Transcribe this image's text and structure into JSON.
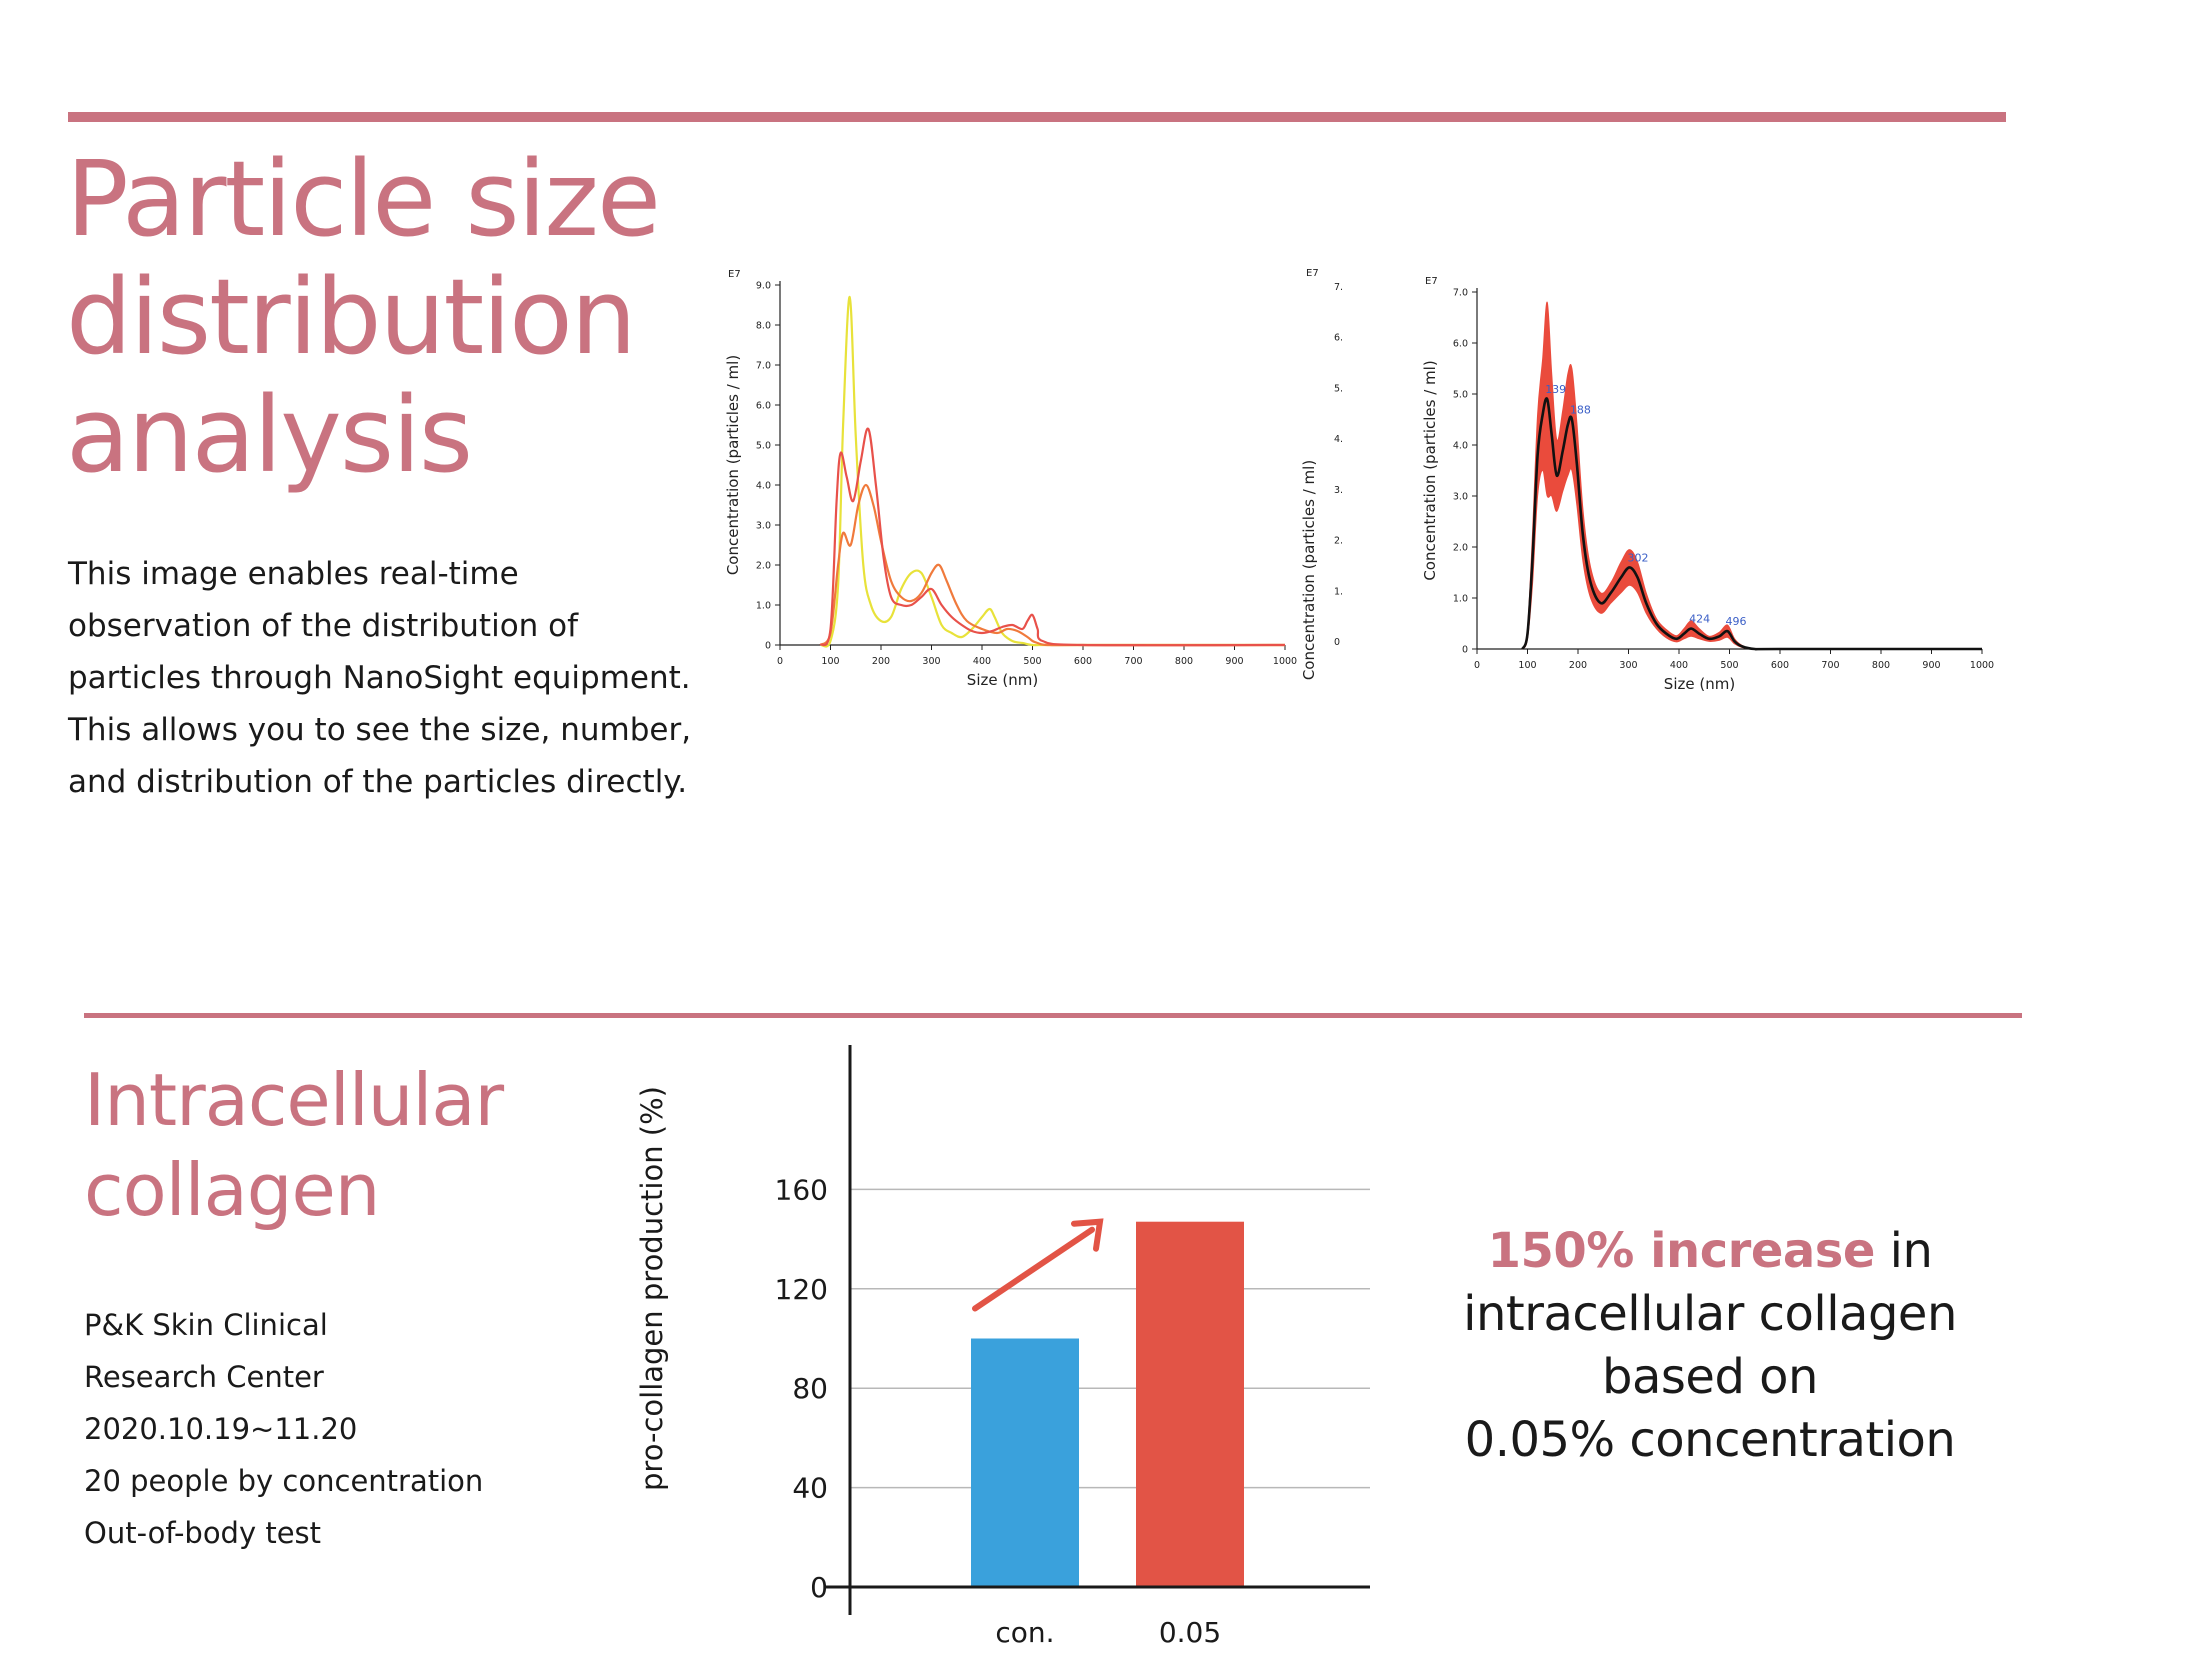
{
  "section1": {
    "title": "Particle size distribution analysis",
    "description": "This image enables real-time observation of the distribution of particles through NanoSight equipment. This allows you to see the size, number, and distribution of the particles directly."
  },
  "section2": {
    "title": "Intracellular collagen",
    "info": [
      "P&K Skin Clinical",
      "Research Center",
      "2020.10.19~11.20",
      "20 people by concentration",
      "Out-of-body test"
    ],
    "callout": {
      "highlight": "150% increase",
      "rest_line1": " in",
      "line2": "intracellular collagen",
      "line3": "based on",
      "line4": "0.05% concentration"
    }
  },
  "colors": {
    "accent": "#c97380",
    "bar_control": "#3aa1dc",
    "bar_treatment": "#e25446",
    "arrow": "#e25446"
  },
  "chart_data": [
    {
      "type": "line",
      "xlabel": "Size (nm)",
      "ylabel": "Concentration (particles / ml)",
      "y_unit": "E7",
      "xlim": [
        0,
        1000
      ],
      "ylim": [
        0,
        9.0
      ],
      "xticks": [
        "0",
        "100",
        "200",
        "300",
        "400",
        "500",
        "600",
        "700",
        "800",
        "900",
        "1000"
      ],
      "yticks": [
        "0",
        "1.0",
        "2.0",
        "3.0",
        "4.0",
        "5.0",
        "6.0",
        "7.0",
        "8.0",
        "9.0"
      ],
      "series": [
        {
          "color": "#e8e23a",
          "x": [
            80,
            100,
            115,
            125,
            138,
            150,
            165,
            180,
            200,
            220,
            240,
            260,
            280,
            300,
            320,
            340,
            360,
            380,
            400,
            415,
            425,
            440,
            460,
            480,
            500,
            520,
            550,
            600,
            700,
            800,
            900,
            1000
          ],
          "y": [
            0,
            0.1,
            1.5,
            5.5,
            8.7,
            5.2,
            2.0,
            1.0,
            0.6,
            0.7,
            1.4,
            1.8,
            1.8,
            1.2,
            0.5,
            0.3,
            0.2,
            0.4,
            0.7,
            0.9,
            0.7,
            0.3,
            0.1,
            0.05,
            0,
            0,
            0,
            0,
            0,
            0,
            0,
            0
          ]
        },
        {
          "color": "#f07a3c",
          "x": [
            80,
            100,
            115,
            125,
            140,
            155,
            170,
            185,
            200,
            220,
            240,
            260,
            280,
            300,
            315,
            330,
            350,
            370,
            400,
            430,
            450,
            470,
            490,
            500,
            510,
            530,
            600,
            1000
          ],
          "y": [
            0,
            0.3,
            2.0,
            2.8,
            2.5,
            3.5,
            4.0,
            3.5,
            2.6,
            1.6,
            1.2,
            1.1,
            1.3,
            1.8,
            2.0,
            1.6,
            1.0,
            0.6,
            0.4,
            0.3,
            0.4,
            0.35,
            0.2,
            0.1,
            0.05,
            0,
            0,
            0
          ]
        },
        {
          "color": "#e8514a",
          "x": [
            80,
            100,
            112,
            120,
            132,
            145,
            160,
            175,
            190,
            205,
            220,
            240,
            260,
            280,
            300,
            320,
            340,
            360,
            380,
            400,
            420,
            440,
            460,
            480,
            490,
            500,
            510,
            520,
            600,
            1000
          ],
          "y": [
            0,
            0.4,
            3.6,
            4.8,
            4.2,
            3.6,
            4.6,
            5.4,
            4.0,
            2.2,
            1.2,
            1.0,
            1.0,
            1.2,
            1.4,
            1.0,
            0.7,
            0.5,
            0.35,
            0.3,
            0.35,
            0.45,
            0.5,
            0.4,
            0.6,
            0.75,
            0.4,
            0.1,
            0,
            0
          ]
        }
      ]
    },
    {
      "type": "line",
      "xlabel": "Size (nm)",
      "ylabel": "Concentration (particles / ml)",
      "y_unit": "E7",
      "xlim": [
        0,
        1000
      ],
      "ylim": [
        0,
        7.0
      ],
      "xticks": [
        "0",
        "100",
        "200",
        "300",
        "400",
        "500",
        "600",
        "700",
        "800",
        "900",
        "1000"
      ],
      "yticks": [
        "0",
        "1.0",
        "2.0",
        "3.0",
        "4.0",
        "5.0",
        "6.0",
        "7.0"
      ],
      "series": [
        {
          "name": "mean",
          "color": "#111111",
          "x": [
            90,
            100,
            110,
            120,
            130,
            139,
            148,
            158,
            170,
            180,
            188,
            198,
            210,
            225,
            245,
            265,
            285,
            302,
            318,
            335,
            355,
            375,
            395,
            410,
            424,
            440,
            460,
            480,
            496,
            510,
            525,
            550,
            600,
            1000
          ],
          "y": [
            0,
            0.3,
            1.8,
            3.8,
            4.6,
            4.9,
            4.2,
            3.4,
            3.9,
            4.4,
            4.5,
            3.6,
            2.2,
            1.3,
            0.9,
            1.1,
            1.4,
            1.6,
            1.4,
            0.9,
            0.5,
            0.3,
            0.2,
            0.3,
            0.4,
            0.3,
            0.2,
            0.25,
            0.35,
            0.15,
            0.05,
            0,
            0,
            0
          ],
          "error": [
            0,
            0.1,
            0.5,
            0.8,
            1.1,
            1.9,
            1.2,
            0.7,
            0.8,
            1.0,
            1.0,
            0.8,
            0.5,
            0.3,
            0.2,
            0.2,
            0.3,
            0.35,
            0.3,
            0.2,
            0.1,
            0.08,
            0.06,
            0.1,
            0.15,
            0.1,
            0.05,
            0.08,
            0.12,
            0.05,
            0.02,
            0,
            0,
            0
          ]
        }
      ],
      "peak_labels": [
        {
          "x": 139,
          "y": 4.9,
          "text": "139"
        },
        {
          "x": 188,
          "y": 4.5,
          "text": "188"
        },
        {
          "x": 302,
          "y": 1.6,
          "text": "302"
        },
        {
          "x": 424,
          "y": 0.4,
          "text": "424"
        },
        {
          "x": 496,
          "y": 0.35,
          "text": "496"
        }
      ]
    },
    {
      "type": "bar",
      "categories": [
        "con.",
        "0.05"
      ],
      "values": [
        100,
        147
      ],
      "ylabel": "pro-collagen production (%)",
      "yticks": [
        "0",
        "40",
        "80",
        "120",
        "160"
      ],
      "ylim": [
        0,
        200
      ],
      "grid": true
    }
  ]
}
